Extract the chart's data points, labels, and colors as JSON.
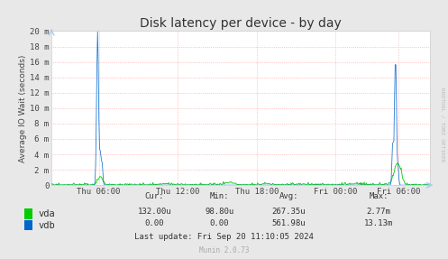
{
  "title": "Disk latency per device - by day",
  "ylabel": "Average IO Wait (seconds)",
  "background_color": "#e8e8e8",
  "plot_bg_color": "#ffffff",
  "grid_color": "#ff9999",
  "x_ticks_labels": [
    "Thu 06:00",
    "Thu 12:00",
    "Thu 18:00",
    "Fri 00:00",
    "Fri 06:00"
  ],
  "x_ticks_pos": [
    0.125,
    0.333,
    0.542,
    0.75,
    0.917
  ],
  "ylim": [
    0,
    0.02
  ],
  "yticks": [
    0,
    0.002,
    0.004,
    0.006,
    0.008,
    0.01,
    0.012,
    0.014,
    0.016,
    0.018,
    0.02
  ],
  "ytick_labels": [
    "0",
    "2 m",
    "4 m",
    "6 m",
    "8 m",
    "10 m",
    "12 m",
    "14 m",
    "16 m",
    "18 m",
    "20 m"
  ],
  "vda_color": "#00cc00",
  "vdb_color": "#0066cc",
  "stats_cur_vda": "132.00u",
  "stats_min_vda": "98.80u",
  "stats_avg_vda": "267.35u",
  "stats_max_vda": "2.77m",
  "stats_cur_vdb": "0.00",
  "stats_min_vdb": "0.00",
  "stats_avg_vdb": "561.98u",
  "stats_max_vdb": "13.13m",
  "last_update": "Last update: Fri Sep 20 11:10:05 2024",
  "munin_version": "Munin 2.0.73",
  "rrdtool_label": "RRDTOOL / TOBI OETIKER",
  "title_fontsize": 10,
  "axis_fontsize": 6.5,
  "legend_fontsize": 7.5,
  "stats_fontsize": 6.5
}
